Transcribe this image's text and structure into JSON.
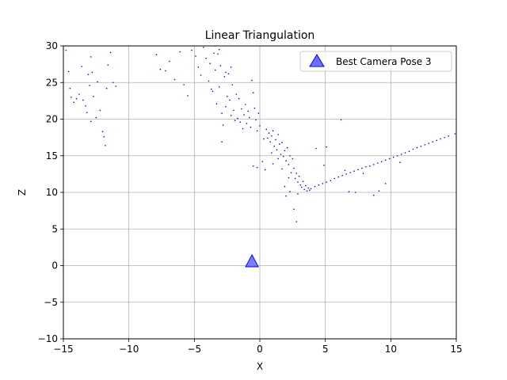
{
  "chart_data": {
    "type": "scatter",
    "title": "Linear Triangulation",
    "xlabel": "X",
    "ylabel": "Z",
    "xlim": [
      -15,
      15
    ],
    "ylim": [
      -10,
      30
    ],
    "xticks": [
      -15,
      -10,
      -5,
      0,
      5,
      10,
      15
    ],
    "xtick_labels": [
      "−15",
      "−10",
      "−5",
      "0",
      "5",
      "10",
      "15"
    ],
    "yticks": [
      -10,
      -5,
      0,
      5,
      10,
      15,
      20,
      25,
      30
    ],
    "ytick_labels": [
      "−10",
      "−5",
      "0",
      "5",
      "10",
      "15",
      "20",
      "25",
      "30"
    ],
    "grid": true,
    "legend_position": "top-right",
    "colors": {
      "points": "#0000ff",
      "camera": "#6f6fff",
      "camera_edge": "#0000ff",
      "grid": "#b0b0b0"
    },
    "series": [
      {
        "name": "Best Camera Pose 3",
        "marker": "triangle",
        "points": [
          [
            -0.6,
            0.6
          ]
        ]
      },
      {
        "marker": "dot",
        "points": [
          [
            -14.8,
            29.4
          ],
          [
            -14.6,
            26.5
          ],
          [
            -14.5,
            24.2
          ],
          [
            -14.2,
            22.3
          ],
          [
            -14.0,
            22.8
          ],
          [
            -13.8,
            23.4
          ],
          [
            -13.6,
            27.2
          ],
          [
            -13.5,
            22.6
          ],
          [
            -13.3,
            21.8
          ],
          [
            -13.2,
            20.9
          ],
          [
            -13.0,
            24.6
          ],
          [
            -12.9,
            28.5
          ],
          [
            -12.8,
            26.4
          ],
          [
            -12.7,
            23.1
          ],
          [
            -12.5,
            20.2
          ],
          [
            -12.4,
            25.1
          ],
          [
            -12.2,
            21.2
          ],
          [
            -12.0,
            18.3
          ],
          [
            -11.9,
            17.6
          ],
          [
            -11.8,
            16.4
          ],
          [
            -11.7,
            24.2
          ],
          [
            -11.6,
            27.4
          ],
          [
            -11.4,
            29.1
          ],
          [
            -11.2,
            25.0
          ],
          [
            -11.0,
            24.5
          ],
          [
            -12.9,
            19.7
          ],
          [
            -13.1,
            26.1
          ],
          [
            -14.4,
            23.0
          ],
          [
            -7.9,
            28.8
          ],
          [
            -7.6,
            26.8
          ],
          [
            -7.2,
            26.6
          ],
          [
            -6.9,
            27.9
          ],
          [
            -6.5,
            25.4
          ],
          [
            -6.1,
            29.2
          ],
          [
            -5.8,
            24.7
          ],
          [
            -5.5,
            23.2
          ],
          [
            -5.2,
            29.4
          ],
          [
            -4.9,
            28.6
          ],
          [
            -4.7,
            27.1
          ],
          [
            -4.5,
            26.0
          ],
          [
            -4.3,
            29.8
          ],
          [
            -4.1,
            28.3
          ],
          [
            -3.9,
            25.2
          ],
          [
            -3.8,
            27.6
          ],
          [
            -3.6,
            23.8
          ],
          [
            -3.5,
            29.0
          ],
          [
            -3.4,
            26.7
          ],
          [
            -3.3,
            22.1
          ],
          [
            -3.2,
            28.9
          ],
          [
            -3.1,
            24.4
          ],
          [
            -3.0,
            27.3
          ],
          [
            -2.9,
            20.8
          ],
          [
            -2.8,
            19.2
          ],
          [
            -2.7,
            25.8
          ],
          [
            -2.6,
            21.7
          ],
          [
            -2.5,
            23.1
          ],
          [
            -2.4,
            26.2
          ],
          [
            -2.3,
            22.6
          ],
          [
            -2.2,
            20.5
          ],
          [
            -2.1,
            24.7
          ],
          [
            -2.0,
            21.2
          ],
          [
            -1.9,
            19.8
          ],
          [
            -1.8,
            23.4
          ],
          [
            -1.7,
            20.1
          ],
          [
            -1.6,
            22.8
          ],
          [
            -1.5,
            19.6
          ],
          [
            -1.4,
            21.4
          ],
          [
            -1.3,
            18.7
          ],
          [
            -1.2,
            20.6
          ],
          [
            -1.1,
            22.0
          ],
          [
            -1.0,
            19.4
          ],
          [
            -0.9,
            21.1
          ],
          [
            -0.8,
            20.2
          ],
          [
            -0.7,
            18.9
          ],
          [
            -0.6,
            25.3
          ],
          [
            -0.5,
            23.6
          ],
          [
            -0.4,
            21.5
          ],
          [
            -0.3,
            19.9
          ],
          [
            -0.2,
            18.4
          ],
          [
            -0.1,
            20.8
          ],
          [
            0.0,
            19.1
          ],
          [
            -2.9,
            16.9
          ],
          [
            -3.1,
            29.5
          ],
          [
            -3.4,
            30.0
          ],
          [
            -2.6,
            26.4
          ],
          [
            -2.2,
            27.1
          ],
          [
            -3.7,
            24.1
          ],
          [
            -0.5,
            13.6
          ],
          [
            -0.2,
            13.4
          ],
          [
            0.2,
            14.2
          ],
          [
            0.4,
            13.1
          ],
          [
            0.6,
            17.4
          ],
          [
            0.7,
            18.1
          ],
          [
            0.8,
            16.9
          ],
          [
            0.9,
            17.7
          ],
          [
            1.0,
            18.4
          ],
          [
            1.1,
            16.3
          ],
          [
            1.2,
            17.2
          ],
          [
            1.3,
            15.8
          ],
          [
            1.4,
            17.9
          ],
          [
            1.5,
            16.6
          ],
          [
            1.6,
            15.2
          ],
          [
            1.7,
            16.8
          ],
          [
            1.8,
            14.9
          ],
          [
            1.9,
            15.7
          ],
          [
            2.0,
            14.3
          ],
          [
            2.1,
            16.1
          ],
          [
            2.2,
            13.8
          ],
          [
            2.3,
            15.0
          ],
          [
            2.4,
            12.7
          ],
          [
            2.5,
            14.6
          ],
          [
            2.6,
            13.3
          ],
          [
            2.7,
            11.9
          ],
          [
            2.8,
            12.6
          ],
          [
            2.9,
            11.4
          ],
          [
            3.0,
            12.2
          ],
          [
            3.1,
            11.0
          ],
          [
            3.2,
            10.7
          ],
          [
            3.3,
            11.5
          ],
          [
            3.4,
            10.4
          ],
          [
            3.5,
            10.9
          ],
          [
            3.6,
            10.2
          ],
          [
            3.7,
            10.6
          ],
          [
            3.8,
            10.3
          ],
          [
            2.0,
            9.5
          ],
          [
            2.3,
            10.1
          ],
          [
            2.6,
            7.7
          ],
          [
            1.9,
            10.8
          ],
          [
            2.8,
            6.0
          ],
          [
            0.5,
            18.6
          ],
          [
            0.3,
            17.3
          ],
          [
            0.9,
            15.4
          ],
          [
            1.4,
            14.6
          ],
          [
            1.7,
            13.2
          ],
          [
            2.2,
            12.0
          ],
          [
            2.9,
            9.8
          ],
          [
            1.0,
            13.9
          ],
          [
            3.9,
            10.5
          ],
          [
            4.2,
            10.8
          ],
          [
            4.5,
            11.0
          ],
          [
            4.8,
            11.2
          ],
          [
            5.1,
            11.4
          ],
          [
            5.4,
            11.6
          ],
          [
            5.7,
            11.9
          ],
          [
            6.0,
            12.1
          ],
          [
            6.3,
            12.3
          ],
          [
            6.6,
            12.5
          ],
          [
            6.9,
            12.7
          ],
          [
            7.2,
            12.9
          ],
          [
            7.5,
            13.1
          ],
          [
            7.8,
            13.3
          ],
          [
            8.1,
            13.5
          ],
          [
            8.4,
            13.6
          ],
          [
            8.7,
            13.8
          ],
          [
            9.0,
            14.0
          ],
          [
            9.3,
            14.2
          ],
          [
            9.6,
            14.4
          ],
          [
            9.9,
            14.6
          ],
          [
            10.2,
            14.8
          ],
          [
            10.5,
            15.0
          ],
          [
            10.8,
            15.2
          ],
          [
            11.1,
            15.4
          ],
          [
            11.4,
            15.6
          ],
          [
            11.7,
            15.9
          ],
          [
            12.0,
            16.1
          ],
          [
            12.3,
            16.3
          ],
          [
            12.6,
            16.5
          ],
          [
            12.9,
            16.7
          ],
          [
            13.2,
            16.9
          ],
          [
            13.5,
            17.1
          ],
          [
            13.8,
            17.3
          ],
          [
            14.1,
            17.5
          ],
          [
            14.4,
            17.7
          ],
          [
            14.9,
            18.0
          ],
          [
            4.3,
            16.0
          ],
          [
            5.1,
            16.2
          ],
          [
            6.2,
            19.9
          ],
          [
            6.8,
            10.1
          ],
          [
            7.3,
            10.0
          ],
          [
            8.7,
            9.6
          ],
          [
            9.1,
            10.2
          ],
          [
            9.6,
            11.2
          ],
          [
            4.9,
            13.7
          ],
          [
            6.5,
            13.0
          ],
          [
            7.9,
            12.6
          ],
          [
            10.7,
            14.1
          ]
        ]
      }
    ]
  }
}
